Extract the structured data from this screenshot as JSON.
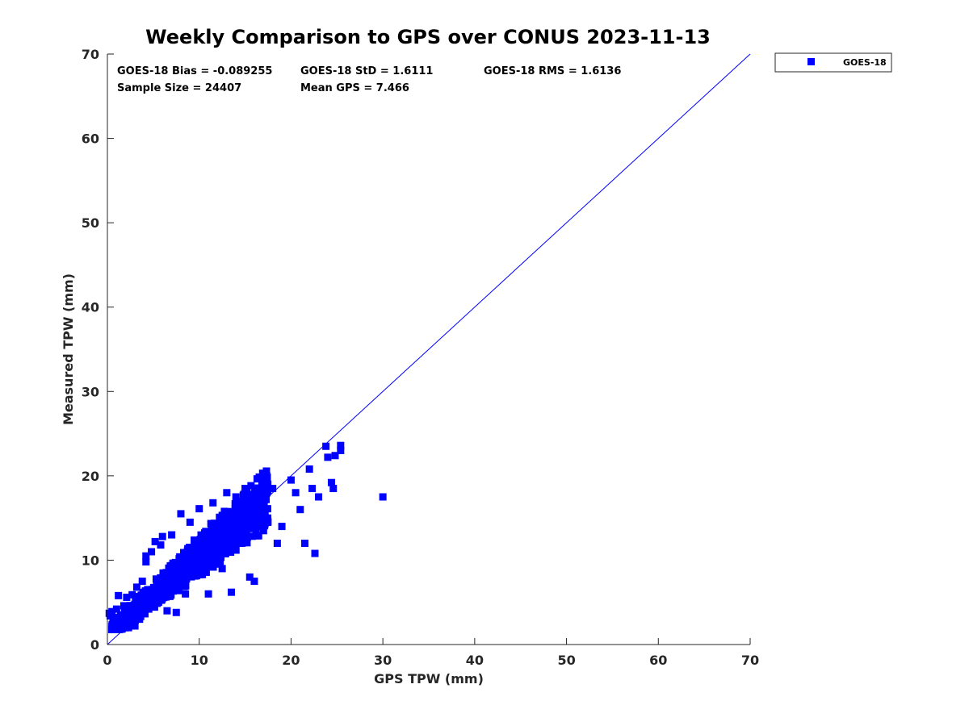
{
  "chart_data": {
    "type": "scatter",
    "title": "Weekly Comparison to GPS over CONUS 2023-11-13",
    "xlabel": "GPS TPW (mm)",
    "ylabel": "Measured TPW (mm)",
    "xlim": [
      0,
      70
    ],
    "ylim": [
      0,
      70
    ],
    "xticks": [
      "0",
      "10",
      "20",
      "30",
      "40",
      "50",
      "60",
      "70"
    ],
    "yticks": [
      "0",
      "10",
      "20",
      "30",
      "40",
      "50",
      "60",
      "70"
    ],
    "grid": false,
    "legend": {
      "position": "top-right-outside",
      "entries": [
        "GOES-18"
      ]
    },
    "marker_color": "#0000ff",
    "one_to_one_line": {
      "from": [
        0,
        0
      ],
      "to": [
        70,
        70
      ],
      "color": "#0000ff"
    },
    "stats": {
      "bias": "GOES-18 Bias = -0.089255",
      "std": "GOES-18 StD = 1.6111",
      "rms": "GOES-18 RMS = 1.6136",
      "sample": "Sample Size = 24407",
      "mean": "Mean GPS = 7.466"
    },
    "series": [
      {
        "name": "GOES-18",
        "points": [
          [
            0.2,
            3.7
          ],
          [
            0.3,
            3.4
          ],
          [
            0.5,
            3.9
          ],
          [
            0.8,
            3.2
          ],
          [
            1.0,
            4.2
          ],
          [
            1.2,
            5.8
          ],
          [
            1.3,
            2.5
          ],
          [
            1.5,
            3.0
          ],
          [
            1.6,
            2.1
          ],
          [
            1.8,
            4.6
          ],
          [
            2.0,
            2.4
          ],
          [
            2.1,
            5.6
          ],
          [
            2.3,
            2.0
          ],
          [
            2.5,
            3.3
          ],
          [
            2.7,
            5.9
          ],
          [
            3.0,
            2.2
          ],
          [
            3.2,
            6.8
          ],
          [
            3.5,
            3.0
          ],
          [
            3.8,
            7.5
          ],
          [
            4.0,
            5.0
          ],
          [
            4.2,
            10.5
          ],
          [
            4.2,
            9.8
          ],
          [
            4.5,
            4.2
          ],
          [
            4.8,
            11.0
          ],
          [
            5.0,
            6.5
          ],
          [
            5.2,
            12.2
          ],
          [
            5.5,
            5.2
          ],
          [
            5.8,
            11.8
          ],
          [
            6.0,
            12.8
          ],
          [
            6.3,
            7.2
          ],
          [
            6.5,
            4.0
          ],
          [
            7.0,
            13.0
          ],
          [
            7.2,
            8.5
          ],
          [
            7.5,
            3.8
          ],
          [
            8.0,
            15.5
          ],
          [
            8.2,
            10.0
          ],
          [
            8.5,
            6.0
          ],
          [
            9.0,
            14.5
          ],
          [
            9.5,
            8.5
          ],
          [
            10.0,
            16.1
          ],
          [
            10.5,
            11.5
          ],
          [
            11.0,
            6.0
          ],
          [
            11.5,
            16.8
          ],
          [
            12.0,
            13.0
          ],
          [
            12.5,
            9.0
          ],
          [
            13.0,
            18.0
          ],
          [
            13.5,
            6.2
          ],
          [
            14.0,
            17.5
          ],
          [
            14.5,
            12.0
          ],
          [
            15.0,
            18.5
          ],
          [
            15.5,
            8.0
          ],
          [
            16.0,
            7.5
          ],
          [
            16.5,
            17.8
          ],
          [
            17.0,
            13.5
          ],
          [
            18.0,
            18.5
          ],
          [
            18.5,
            12.0
          ],
          [
            19.0,
            14.0
          ],
          [
            20.0,
            19.5
          ],
          [
            20.5,
            18.0
          ],
          [
            21.0,
            16.0
          ],
          [
            21.5,
            12.0
          ],
          [
            22.0,
            20.8
          ],
          [
            22.3,
            18.5
          ],
          [
            22.6,
            10.8
          ],
          [
            23.0,
            17.5
          ],
          [
            23.8,
            23.5
          ],
          [
            24.0,
            22.2
          ],
          [
            24.4,
            19.2
          ],
          [
            24.6,
            18.5
          ],
          [
            24.8,
            22.4
          ],
          [
            25.4,
            23.0
          ],
          [
            25.4,
            23.6
          ],
          [
            30.0,
            17.5
          ]
        ]
      }
    ]
  }
}
